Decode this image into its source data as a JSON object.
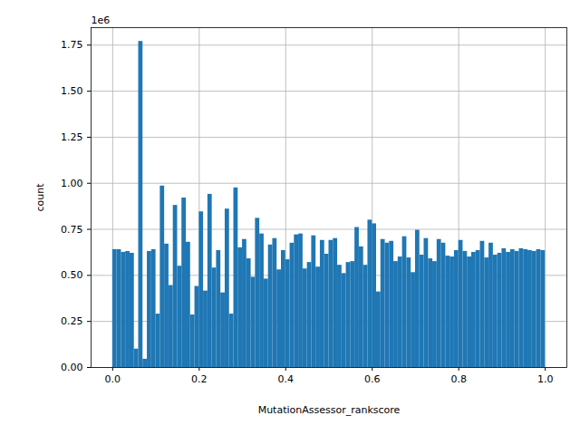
{
  "chart_data": {
    "type": "histogram",
    "x_label": "MutationAssessor_rankscore",
    "y_label": "count",
    "annotations": [
      {
        "text": "1e6"
      }
    ],
    "color": "#1f77b4",
    "grid": true,
    "bins": [
      0,
      0.01,
      0.02,
      0.03,
      0.04,
      0.05,
      0.06,
      0.07,
      0.08,
      0.09,
      0.1,
      0.11,
      0.12,
      0.13,
      0.14,
      0.15,
      0.16,
      0.17,
      0.18,
      0.19,
      0.2,
      0.21,
      0.22,
      0.23,
      0.24,
      0.25,
      0.26,
      0.27,
      0.28,
      0.29,
      0.3,
      0.31,
      0.32,
      0.33,
      0.34,
      0.35,
      0.36,
      0.37,
      0.38,
      0.39,
      0.4,
      0.41,
      0.42,
      0.43,
      0.44,
      0.45,
      0.46,
      0.47,
      0.48,
      0.49,
      0.5,
      0.51,
      0.52,
      0.53,
      0.54,
      0.55,
      0.56,
      0.57,
      0.58,
      0.59,
      0.6,
      0.61,
      0.62,
      0.63,
      0.64,
      0.65,
      0.66,
      0.67,
      0.68,
      0.69,
      0.7,
      0.71,
      0.72,
      0.73,
      0.74,
      0.75,
      0.76,
      0.77,
      0.78,
      0.79,
      0.8,
      0.81,
      0.82,
      0.83,
      0.84,
      0.85,
      0.86,
      0.87,
      0.88,
      0.89,
      0.9,
      0.91,
      0.92,
      0.93,
      0.94,
      0.95,
      0.96,
      0.97,
      0.98,
      0.99,
      1
    ],
    "values": [
      640000,
      640000,
      625000,
      630000,
      620000,
      100000,
      1770000,
      45000,
      630000,
      640000,
      290000,
      985000,
      670000,
      445000,
      880000,
      550000,
      920000,
      680000,
      285000,
      440000,
      845000,
      415000,
      940000,
      540000,
      635000,
      405000,
      860000,
      290000,
      975000,
      650000,
      695000,
      590000,
      490000,
      810000,
      725000,
      480000,
      665000,
      700000,
      530000,
      635000,
      585000,
      675000,
      720000,
      725000,
      535000,
      570000,
      715000,
      545000,
      690000,
      615000,
      690000,
      700000,
      555000,
      510000,
      570000,
      575000,
      760000,
      655000,
      555000,
      800000,
      780000,
      410000,
      695000,
      675000,
      685000,
      575000,
      600000,
      710000,
      595000,
      515000,
      745000,
      610000,
      700000,
      590000,
      575000,
      695000,
      675000,
      605000,
      600000,
      635000,
      690000,
      630000,
      600000,
      625000,
      635000,
      685000,
      595000,
      675000,
      610000,
      620000,
      645000,
      625000,
      640000,
      630000,
      645000,
      640000,
      635000,
      630000,
      640000,
      635000
    ],
    "xlim": [
      -0.05,
      1.05
    ],
    "xticks": [
      {
        "value": 0,
        "label": "0.0"
      },
      {
        "value": 0.2,
        "label": "0.2"
      },
      {
        "value": 0.4,
        "label": "0.4"
      },
      {
        "value": 0.6,
        "label": "0.6"
      },
      {
        "value": 0.8,
        "label": "0.8"
      },
      {
        "value": 1,
        "label": "1.0"
      }
    ],
    "ylim": [
      0,
      1845000
    ],
    "yticks": [
      {
        "value": 0,
        "label": "0.00"
      },
      {
        "value": 250000,
        "label": "0.25"
      },
      {
        "value": 500000,
        "label": "0.50"
      },
      {
        "value": 750000,
        "label": "0.75"
      },
      {
        "value": 1000000,
        "label": "1.00"
      },
      {
        "value": 1250000,
        "label": "1.25"
      },
      {
        "value": 1500000,
        "label": "1.50"
      },
      {
        "value": 1750000,
        "label": "1.75"
      }
    ]
  }
}
